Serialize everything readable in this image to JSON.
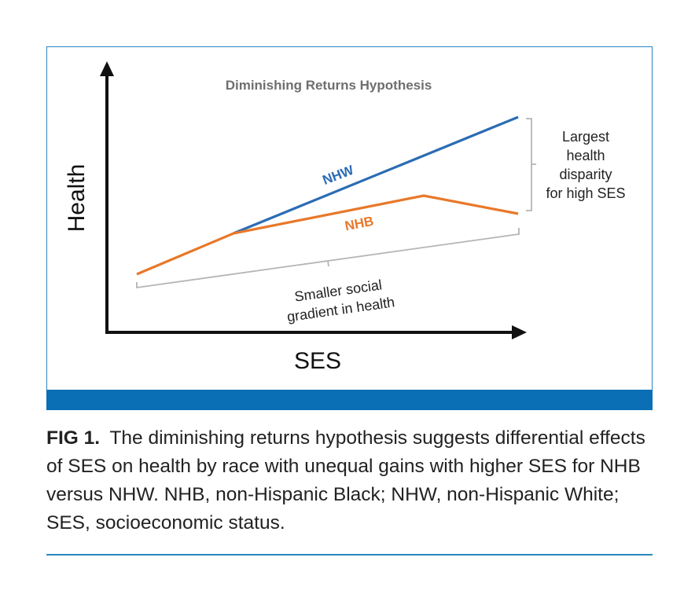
{
  "diagram": {
    "title": "Diminishing Returns Hypothesis",
    "y_axis_label": "Health",
    "x_axis_label": "SES",
    "series": [
      {
        "name": "NHW",
        "color": "#2b6cb5"
      },
      {
        "name": "NHB",
        "color": "#e8782a"
      }
    ],
    "annotations": {
      "disparity": [
        "Largest",
        "health",
        "disparity",
        "for high SES"
      ],
      "gradient": [
        "Smaller social",
        "gradient in health"
      ]
    }
  },
  "caption": {
    "label": "FIG 1.",
    "text": "The diminishing returns hypothesis suggests differential effects of SES on health by race with unequal gains with higher SES for NHB versus NHW. NHB, non-Hispanic Black; NHW, non-Hispanic White; SES, socioeconomic status."
  },
  "colors": {
    "frame": "#2a86bf",
    "bar": "#0a6fb5",
    "bracket": "#b5b5b5"
  }
}
